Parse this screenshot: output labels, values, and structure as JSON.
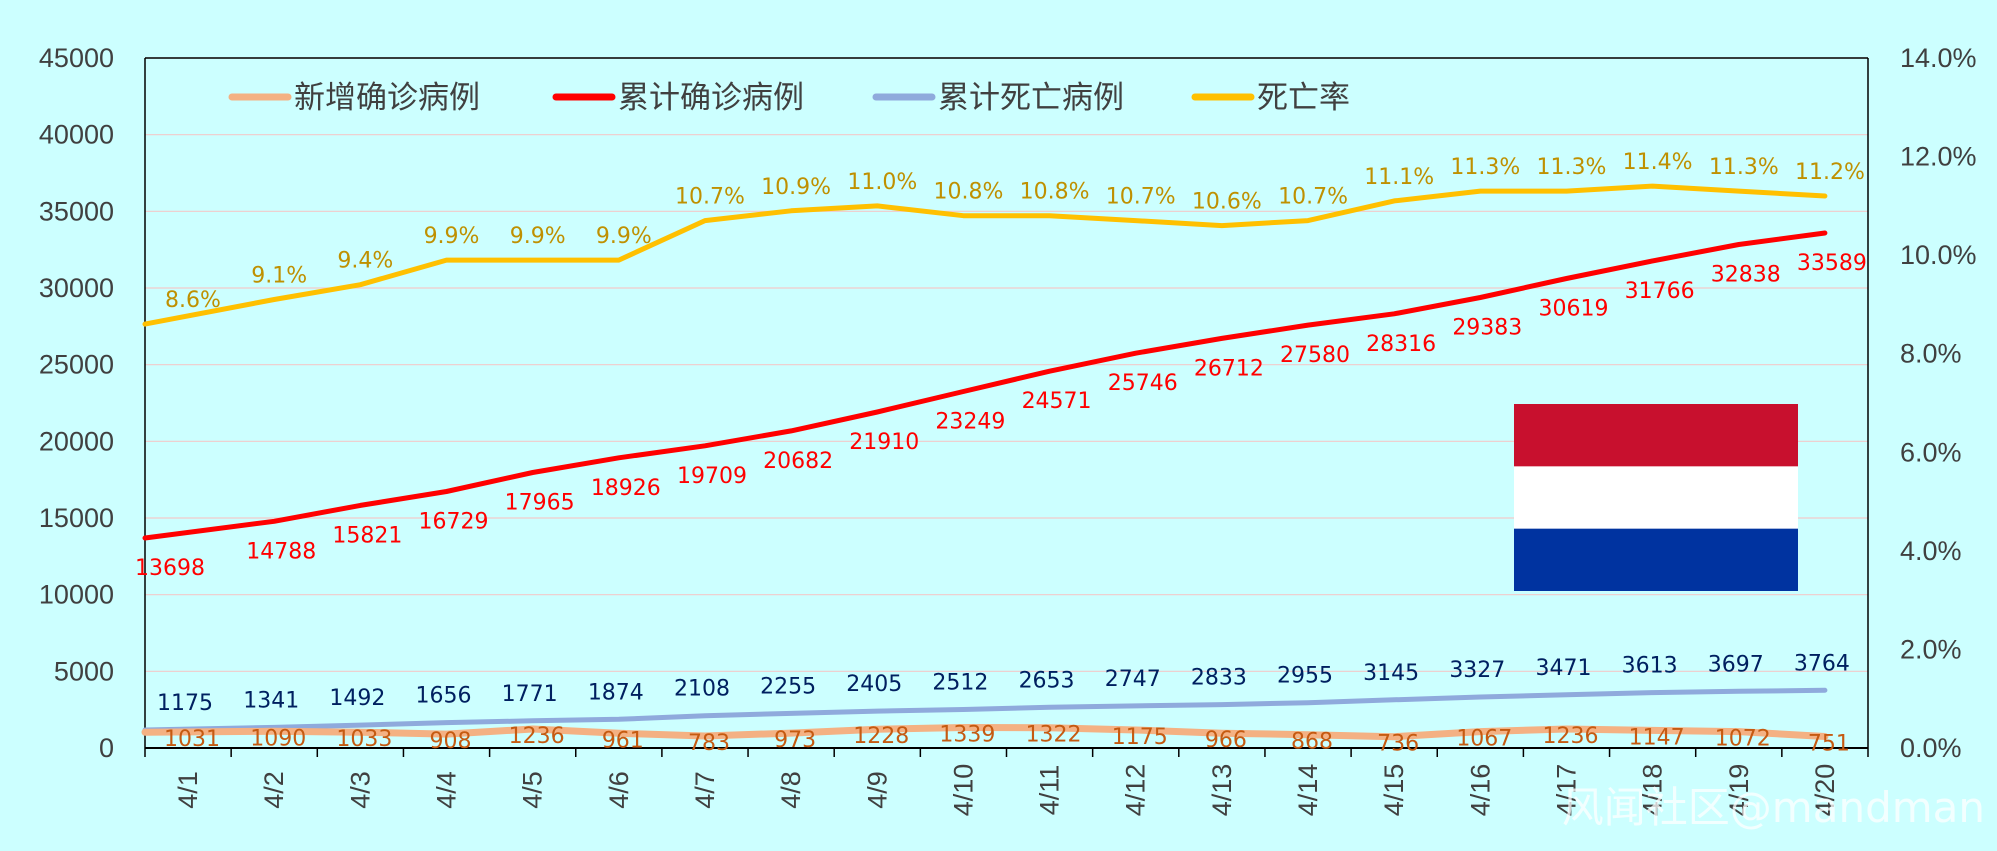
{
  "chart_data": {
    "type": "line",
    "categories": [
      "4/1",
      "4/2",
      "4/3",
      "4/4",
      "4/5",
      "4/6",
      "4/7",
      "4/8",
      "4/9",
      "4/10",
      "4/11",
      "4/12",
      "4/13",
      "4/14",
      "4/15",
      "4/16",
      "4/17",
      "4/18",
      "4/19",
      "4/20"
    ],
    "left_axis": {
      "min": 0,
      "max": 45000,
      "step": 5000,
      "ticks": [
        "0",
        "5000",
        "10000",
        "15000",
        "20000",
        "25000",
        "30000",
        "35000",
        "40000",
        "45000"
      ]
    },
    "right_axis": {
      "min": 0,
      "max": 14,
      "step": 2,
      "ticks": [
        "0.0%",
        "2.0%",
        "4.0%",
        "6.0%",
        "8.0%",
        "10.0%",
        "12.0%",
        "14.0%"
      ]
    },
    "series": [
      {
        "name": "新增确诊病例",
        "axis": "left",
        "color": "#f4b183",
        "label_color": "#c55a11",
        "values": [
          1031,
          1090,
          1033,
          908,
          1236,
          961,
          783,
          973,
          1228,
          1339,
          1322,
          1175,
          966,
          868,
          736,
          1067,
          1236,
          1147,
          1072,
          751
        ],
        "labels": [
          "1031",
          "1090",
          "1033",
          "908",
          "1236",
          "961",
          "783",
          "973",
          "1228",
          "1339",
          "1322",
          "1175",
          "966",
          "868",
          "736",
          "1067",
          "1236",
          "1147",
          "1072",
          "751"
        ]
      },
      {
        "name": "累计确诊病例",
        "axis": "left",
        "color": "#ff0000",
        "label_color": "#ff0000",
        "values": [
          13698,
          14788,
          15821,
          16729,
          17965,
          18926,
          19709,
          20682,
          21910,
          23249,
          24571,
          25746,
          26712,
          27580,
          28316,
          29383,
          30619,
          31766,
          32838,
          33589
        ],
        "labels": [
          "13698",
          "14788",
          "15821",
          "16729",
          "17965",
          "18926",
          "19709",
          "20682",
          "21910",
          "23249",
          "24571",
          "25746",
          "26712",
          "27580",
          "28316",
          "29383",
          "30619",
          "31766",
          "32838",
          "33589"
        ]
      },
      {
        "name": "累计死亡病例",
        "axis": "left",
        "color": "#8faadc",
        "label_color": "#002060",
        "values": [
          1175,
          1341,
          1492,
          1656,
          1771,
          1874,
          2108,
          2255,
          2405,
          2512,
          2653,
          2747,
          2833,
          2955,
          3145,
          3327,
          3471,
          3613,
          3697,
          3764
        ],
        "labels": [
          "1175",
          "1341",
          "1492",
          "1656",
          "1771",
          "1874",
          "2108",
          "2255",
          "2405",
          "2512",
          "2653",
          "2747",
          "2833",
          "2955",
          "3145",
          "3327",
          "3471",
          "3613",
          "3697",
          "3764"
        ]
      },
      {
        "name": "死亡率",
        "axis": "right",
        "color": "#ffc000",
        "label_color": "#bf9000",
        "values": [
          8.6,
          9.1,
          9.4,
          9.9,
          9.9,
          9.9,
          10.7,
          10.9,
          11.0,
          10.8,
          10.8,
          10.7,
          10.6,
          10.7,
          11.1,
          11.3,
          11.3,
          11.4,
          11.3,
          11.2
        ],
        "labels": [
          "8.6%",
          "9.1%",
          "9.4%",
          "9.9%",
          "9.9%",
          "9.9%",
          "10.7%",
          "10.9%",
          "11.0%",
          "10.8%",
          "10.8%",
          "10.7%",
          "10.6%",
          "10.7%",
          "11.1%",
          "11.3%",
          "11.3%",
          "11.4%",
          "11.3%",
          "11.2%"
        ]
      }
    ],
    "legend_position": "top-left",
    "grid": true,
    "flag_colors": [
      "#c8102e",
      "#ffffff",
      "#0033a0"
    ],
    "watermark": "风闻社区@mandman"
  }
}
